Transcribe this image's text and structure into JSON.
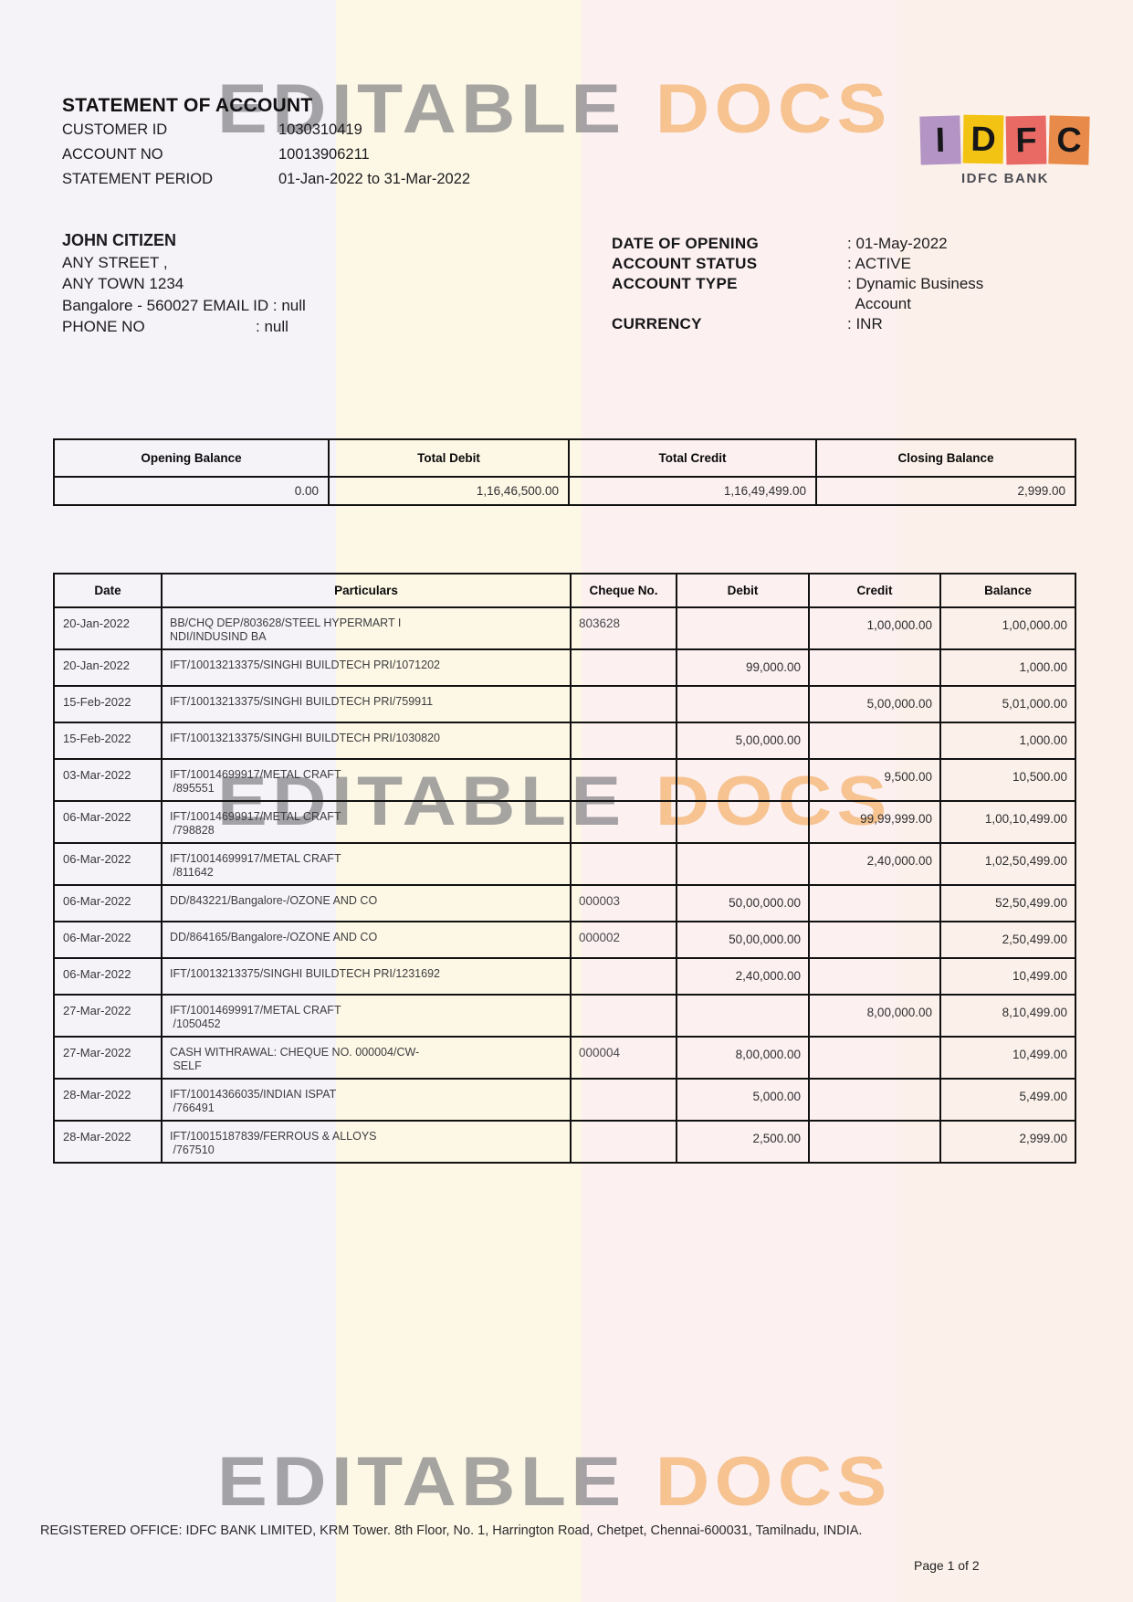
{
  "header": {
    "title": "STATEMENT OF ACCOUNT",
    "fields": [
      {
        "label": "CUSTOMER ID",
        "value": "1030310419"
      },
      {
        "label": "ACCOUNT NO",
        "value": "10013906211"
      },
      {
        "label": "STATEMENT PERIOD",
        "value": "01-Jan-2022 to 31-Mar-2022"
      }
    ]
  },
  "logo": {
    "letters": [
      {
        "char": "I",
        "bg": "#b494c4"
      },
      {
        "char": "D",
        "bg": "#f3c313"
      },
      {
        "char": "F",
        "bg": "#e96a65"
      },
      {
        "char": "C",
        "bg": "#e88b4a"
      }
    ],
    "bank_name": "IDFC BANK"
  },
  "customer": {
    "name": "JOHN CITIZEN",
    "address_lines": [
      "ANY STREET ,",
      "ANY TOWN 1234"
    ],
    "city_email_line": "Bangalore - 560027 EMAIL ID : null",
    "phone_label": "PHONE NO",
    "phone_value": ": null"
  },
  "account_details": [
    {
      "label": "DATE OF OPENING",
      "value": ": 01-May-2022"
    },
    {
      "label": "ACCOUNT STATUS",
      "value": ": ACTIVE"
    },
    {
      "label": "ACCOUNT TYPE",
      "value": ": Dynamic Business\n  Account"
    },
    {
      "label": "CURRENCY",
      "value": ": INR"
    }
  ],
  "summary": {
    "headers": [
      "Opening Balance",
      "Total Debit",
      "Total Credit",
      "Closing Balance"
    ],
    "values": [
      "0.00",
      "1,16,46,500.00",
      "1,16,49,499.00",
      "2,999.00"
    ]
  },
  "transactions": {
    "headers": [
      "Date",
      "Particulars",
      "Cheque No.",
      "Debit",
      "Credit",
      "Balance"
    ],
    "rows": [
      {
        "date": "20-Jan-2022",
        "particulars": "BB/CHQ DEP/803628/STEEL HYPERMART I\nNDI/INDUSIND BA",
        "cheque": "803628",
        "debit": "",
        "credit": "1,00,000.00",
        "balance": "1,00,000.00"
      },
      {
        "date": "20-Jan-2022",
        "particulars": "IFT/10013213375/SINGHI BUILDTECH PRI/1071202",
        "cheque": "",
        "debit": "99,000.00",
        "credit": "",
        "balance": "1,000.00"
      },
      {
        "date": "15-Feb-2022",
        "particulars": "IFT/10013213375/SINGHI BUILDTECH PRI/759911",
        "cheque": "",
        "debit": "",
        "credit": "5,00,000.00",
        "balance": "5,01,000.00"
      },
      {
        "date": "15-Feb-2022",
        "particulars": "IFT/10013213375/SINGHI BUILDTECH PRI/1030820",
        "cheque": "",
        "debit": "5,00,000.00",
        "credit": "",
        "balance": "1,000.00"
      },
      {
        "date": "03-Mar-2022",
        "particulars": "IFT/10014699917/METAL CRAFT\n /895551",
        "cheque": "",
        "debit": "",
        "credit": "9,500.00",
        "balance": "10,500.00"
      },
      {
        "date": "06-Mar-2022",
        "particulars": "IFT/10014699917/METAL CRAFT\n /798828",
        "cheque": "",
        "debit": "",
        "credit": "99,99,999.00",
        "balance": "1,00,10,499.00"
      },
      {
        "date": "06-Mar-2022",
        "particulars": "IFT/10014699917/METAL CRAFT\n /811642",
        "cheque": "",
        "debit": "",
        "credit": "2,40,000.00",
        "balance": "1,02,50,499.00"
      },
      {
        "date": "06-Mar-2022",
        "particulars": "DD/843221/Bangalore-/OZONE AND CO",
        "cheque": "000003",
        "debit": "50,00,000.00",
        "credit": "",
        "balance": "52,50,499.00"
      },
      {
        "date": "06-Mar-2022",
        "particulars": "DD/864165/Bangalore-/OZONE AND CO",
        "cheque": "000002",
        "debit": "50,00,000.00",
        "credit": "",
        "balance": "2,50,499.00"
      },
      {
        "date": "06-Mar-2022",
        "particulars": "IFT/10013213375/SINGHI BUILDTECH PRI/1231692",
        "cheque": "",
        "debit": "2,40,000.00",
        "credit": "",
        "balance": "10,499.00"
      },
      {
        "date": "27-Mar-2022",
        "particulars": "IFT/10014699917/METAL CRAFT\n /1050452",
        "cheque": "",
        "debit": "",
        "credit": "8,00,000.00",
        "balance": "8,10,499.00"
      },
      {
        "date": "27-Mar-2022",
        "particulars": "CASH WITHRAWAL: CHEQUE NO. 000004/CW-\n SELF",
        "cheque": "000004",
        "debit": "8,00,000.00",
        "credit": "",
        "balance": "10,499.00"
      },
      {
        "date": "28-Mar-2022",
        "particulars": "IFT/10014366035/INDIAN ISPAT\n /766491",
        "cheque": "",
        "debit": "5,000.00",
        "credit": "",
        "balance": "5,499.00"
      },
      {
        "date": "28-Mar-2022",
        "particulars": "IFT/10015187839/FERROUS & ALLOYS\n /767510",
        "cheque": "",
        "debit": "2,500.00",
        "credit": "",
        "balance": "2,999.00"
      }
    ]
  },
  "watermark": {
    "word1": "EDITABLE",
    "word2": "DOCS"
  },
  "footer": {
    "registered_office": "REGISTERED OFFICE: IDFC BANK LIMITED, KRM Tower. 8th Floor, No. 1, Harrington Road, Chetpet, Chennai-600031, Tamilnadu, INDIA.",
    "page_indicator": "Page 1 of 2"
  }
}
